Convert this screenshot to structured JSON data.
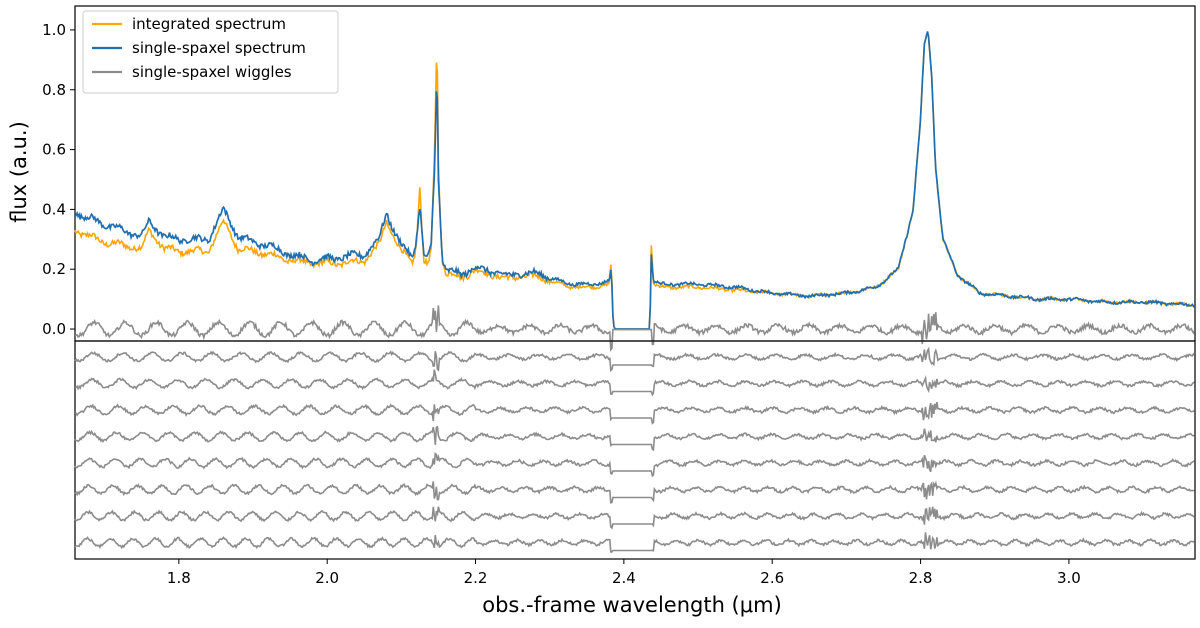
{
  "figure": {
    "xlabel": "obs.-frame wavelength (μm)",
    "ylabel": "flux (a.u.)"
  },
  "chart_data": {
    "type": "line",
    "x_unit": "μm",
    "xlim": [
      1.66,
      3.17
    ],
    "x_ticks": [
      1.8,
      2.0,
      2.2,
      2.4,
      2.6,
      2.8,
      3.0
    ],
    "x_tick_labels": [
      "1.8",
      "2.0",
      "2.2",
      "2.4",
      "2.6",
      "2.8",
      "3.0"
    ],
    "top_panel": {
      "ylim": [
        -0.04,
        1.08
      ],
      "y_ticks": [
        0.0,
        0.2,
        0.4,
        0.6,
        0.8,
        1.0
      ],
      "y_tick_labels": [
        "0.0",
        "0.2",
        "0.4",
        "0.6",
        "0.8",
        "1.0"
      ],
      "legend_position": "upper-left",
      "series": [
        {
          "name": "integrated spectrum",
          "color": "#ffa500",
          "x": [
            1.66,
            1.7,
            1.75,
            1.76,
            1.78,
            1.8,
            1.84,
            1.86,
            1.88,
            1.9,
            1.92,
            1.95,
            1.98,
            2.02,
            2.05,
            2.07,
            2.08,
            2.09,
            2.1,
            2.115,
            2.12,
            2.125,
            2.13,
            2.135,
            2.14,
            2.145,
            2.148,
            2.15,
            2.155,
            2.16,
            2.18,
            2.2,
            2.22,
            2.25,
            2.28,
            2.3,
            2.33,
            2.36,
            2.38,
            2.383,
            2.385,
            2.387,
            2.435,
            2.437,
            2.44,
            2.45,
            2.5,
            2.55,
            2.6,
            2.65,
            2.7,
            2.74,
            2.77,
            2.79,
            2.8,
            2.805,
            2.81,
            2.815,
            2.82,
            2.83,
            2.85,
            2.88,
            2.92,
            2.96,
            3.0,
            3.05,
            3.1,
            3.17
          ],
          "y": [
            0.33,
            0.29,
            0.27,
            0.33,
            0.27,
            0.26,
            0.26,
            0.36,
            0.27,
            0.26,
            0.25,
            0.23,
            0.22,
            0.22,
            0.23,
            0.28,
            0.36,
            0.31,
            0.26,
            0.22,
            0.28,
            0.48,
            0.23,
            0.21,
            0.25,
            0.6,
            1.0,
            0.55,
            0.23,
            0.19,
            0.17,
            0.2,
            0.18,
            0.17,
            0.18,
            0.16,
            0.14,
            0.14,
            0.15,
            0.23,
            0.05,
            0.0,
            0.0,
            0.28,
            0.15,
            0.14,
            0.14,
            0.13,
            0.12,
            0.11,
            0.12,
            0.14,
            0.2,
            0.4,
            0.7,
            0.95,
            1.0,
            0.85,
            0.55,
            0.3,
            0.18,
            0.12,
            0.11,
            0.1,
            0.1,
            0.09,
            0.09,
            0.08
          ]
        },
        {
          "name": "single-spaxel spectrum",
          "color": "#1f6fb0",
          "x": [
            1.66,
            1.7,
            1.75,
            1.76,
            1.78,
            1.8,
            1.84,
            1.86,
            1.88,
            1.9,
            1.92,
            1.95,
            1.98,
            2.02,
            2.05,
            2.07,
            2.08,
            2.09,
            2.1,
            2.115,
            2.12,
            2.125,
            2.13,
            2.135,
            2.14,
            2.145,
            2.148,
            2.15,
            2.155,
            2.16,
            2.18,
            2.2,
            2.22,
            2.25,
            2.28,
            2.3,
            2.33,
            2.36,
            2.38,
            2.383,
            2.385,
            2.387,
            2.435,
            2.437,
            2.44,
            2.45,
            2.5,
            2.55,
            2.6,
            2.65,
            2.7,
            2.74,
            2.77,
            2.79,
            2.8,
            2.805,
            2.81,
            2.815,
            2.82,
            2.83,
            2.85,
            2.88,
            2.92,
            2.96,
            3.0,
            3.05,
            3.1,
            3.17
          ],
          "y": [
            0.39,
            0.35,
            0.31,
            0.36,
            0.31,
            0.3,
            0.3,
            0.4,
            0.31,
            0.29,
            0.28,
            0.25,
            0.23,
            0.24,
            0.25,
            0.3,
            0.39,
            0.33,
            0.28,
            0.24,
            0.3,
            0.42,
            0.25,
            0.23,
            0.27,
            0.55,
            0.88,
            0.5,
            0.24,
            0.2,
            0.18,
            0.21,
            0.19,
            0.18,
            0.19,
            0.17,
            0.15,
            0.15,
            0.16,
            0.2,
            0.05,
            0.0,
            0.0,
            0.25,
            0.16,
            0.15,
            0.15,
            0.14,
            0.12,
            0.11,
            0.12,
            0.14,
            0.2,
            0.4,
            0.7,
            0.95,
            1.0,
            0.85,
            0.55,
            0.3,
            0.18,
            0.12,
            0.11,
            0.1,
            0.1,
            0.09,
            0.09,
            0.08
          ]
        },
        {
          "name": "single-spaxel wiggles",
          "color": "#8c8c8c",
          "baseline": 0.0,
          "gap_x": [
            2.385,
            2.437
          ]
        }
      ]
    },
    "bottom_panel": {
      "y_ticks": [],
      "description_series": "stacked wiggle residuals",
      "offsets": [
        0,
        1,
        2,
        3,
        4,
        5,
        6,
        7
      ],
      "color": "#8c8c8c"
    }
  }
}
